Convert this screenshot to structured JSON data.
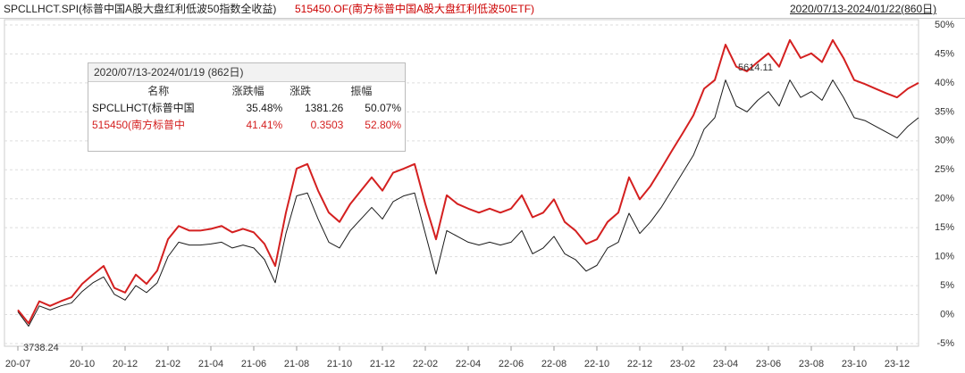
{
  "chart_data": {
    "type": "line",
    "title_left": "SPCLLHCT.SPI(标普中国A股大盘红利低波50指数全收益)",
    "title_mid": "515450.OF(南方标普中国A股大盘红利低波50ETF)",
    "title_right": "2020/07/13-2024/01/22(860日)",
    "categories": [
      "20-07",
      null,
      null,
      null,
      null,
      null,
      "20-10",
      null,
      null,
      null,
      "20-12",
      null,
      null,
      null,
      "21-02",
      null,
      null,
      null,
      "21-04",
      null,
      null,
      null,
      "21-06",
      null,
      null,
      null,
      "21-08",
      null,
      null,
      null,
      "21-10",
      null,
      null,
      null,
      "21-12",
      null,
      null,
      null,
      "22-02",
      null,
      null,
      null,
      "22-04",
      null,
      null,
      null,
      "22-06",
      null,
      null,
      null,
      "22-08",
      null,
      null,
      null,
      "22-10",
      null,
      null,
      null,
      "22-12",
      null,
      null,
      null,
      "23-02",
      null,
      null,
      null,
      "23-04",
      null,
      null,
      null,
      "23-06",
      null,
      null,
      null,
      "23-08",
      null,
      null,
      null,
      "23-10",
      null,
      null,
      null,
      "23-12",
      null,
      null
    ],
    "series": [
      {
        "name": "SPCLLHCT.SPI",
        "color": "#1a1a1a",
        "values": [
          0.5,
          -2,
          1.5,
          0.8,
          1.5,
          2,
          4,
          5.5,
          6.5,
          3.5,
          2.5,
          5,
          3.8,
          5.5,
          10,
          12.5,
          12,
          12,
          12.2,
          12.5,
          11.5,
          12,
          11.5,
          9.5,
          5.5,
          14,
          20.5,
          21,
          16.5,
          12.5,
          11.5,
          14.5,
          16.5,
          18.5,
          16.5,
          19.5,
          20.5,
          21,
          14,
          7,
          14.5,
          13.5,
          12.5,
          12,
          12.5,
          12,
          12.5,
          14.5,
          10.5,
          11.5,
          13.5,
          10.5,
          9.5,
          7.5,
          8.5,
          11.5,
          12.5,
          17.5,
          14,
          16,
          18.5,
          21.5,
          24.5,
          27.5,
          32,
          34,
          40.5,
          36,
          35,
          37,
          38.5,
          36,
          40.5,
          37.5,
          38.5,
          37,
          40.5,
          37.5,
          34,
          33.5,
          32.5,
          31.5,
          30.5,
          32.5,
          34
        ]
      },
      {
        "name": "515450.OF",
        "color": "#d42020",
        "values": [
          0.8,
          -1.5,
          2.3,
          1.5,
          2.3,
          3,
          5.3,
          6.9,
          8.4,
          4.6,
          3.8,
          6.9,
          5.3,
          7.6,
          13,
          15.3,
          14.5,
          14.5,
          14.8,
          15.3,
          14.2,
          14.8,
          14.2,
          12.2,
          8.4,
          17.6,
          25.2,
          26,
          21.4,
          17.6,
          16,
          19.1,
          21.4,
          23.7,
          21.4,
          24.5,
          25.2,
          26,
          19.1,
          13,
          20.6,
          19.1,
          18.3,
          17.6,
          18.3,
          17.6,
          18.3,
          20.6,
          16.8,
          17.6,
          19.9,
          16,
          14.5,
          12.2,
          13,
          16,
          17.6,
          23.7,
          19.9,
          22.2,
          25.2,
          28.3,
          31.3,
          34.4,
          39,
          40.5,
          46.6,
          42.8,
          42,
          43.6,
          45.1,
          42.8,
          47.4,
          44.3,
          45.1,
          43.6,
          47.4,
          44.3,
          40.5,
          39.8,
          39,
          38.2,
          37.5,
          39,
          40
        ]
      }
    ],
    "ylim": [
      -5,
      50
    ],
    "yticks": [
      {
        "value": -5,
        "label": "-5%"
      },
      {
        "value": 0,
        "label": "0%"
      },
      {
        "value": 5,
        "label": "5%"
      },
      {
        "value": 10,
        "label": "10%"
      },
      {
        "value": 15,
        "label": "15%"
      },
      {
        "value": 20,
        "label": "20%"
      },
      {
        "value": 25,
        "label": "25%"
      },
      {
        "value": 30,
        "label": "30%"
      },
      {
        "value": 35,
        "label": "35%"
      },
      {
        "value": 40,
        "label": "40%"
      },
      {
        "value": 45,
        "label": "45%"
      },
      {
        "value": 50,
        "label": "50%"
      }
    ],
    "grid": true,
    "annotations": [
      "5614.11",
      "3738.24"
    ],
    "summary": {
      "title": "2020/07/13-2024/01/19 (862日)",
      "columns": [
        "名称",
        "涨跌幅",
        "涨跌",
        "振幅"
      ],
      "rows": [
        [
          "SPCLLHCT(标普中国",
          "35.48%",
          "1381.26",
          "50.07%"
        ],
        [
          "515450(南方标普中",
          "41.41%",
          "0.3503",
          "52.80%"
        ]
      ]
    }
  }
}
